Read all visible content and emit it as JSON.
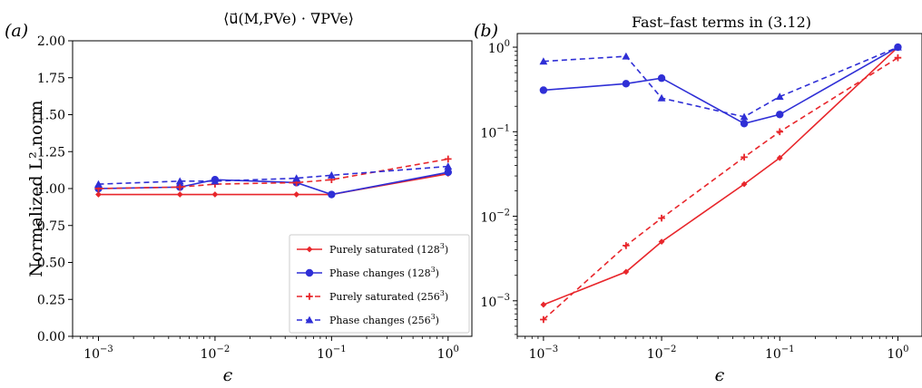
{
  "chart_data": [
    {
      "type": "line",
      "panel_label": "(a)",
      "title": "⟨u⃗(M,PVe) · ∇PVe⟩",
      "xlabel": "ϵ",
      "ylabel": "Normalized L² norm",
      "xscale": "log",
      "yscale": "linear",
      "xlim": [
        0.0006,
        1.6
      ],
      "ylim": [
        0,
        2
      ],
      "xticks": [
        {
          "v": 0.001,
          "b": "10",
          "e": "−3"
        },
        {
          "v": 0.01,
          "b": "10",
          "e": "−2"
        },
        {
          "v": 0.1,
          "b": "10",
          "e": "−1"
        },
        {
          "v": 1,
          "b": "10",
          "e": "0"
        }
      ],
      "yticks": [
        {
          "v": 0,
          "t": "0.00"
        },
        {
          "v": 0.25,
          "t": "0.25"
        },
        {
          "v": 0.5,
          "t": "0.50"
        },
        {
          "v": 0.75,
          "t": "0.75"
        },
        {
          "v": 1.0,
          "t": "1.00"
        },
        {
          "v": 1.25,
          "t": "1.25"
        },
        {
          "v": 1.5,
          "t": "1.50"
        },
        {
          "v": 1.75,
          "t": "1.75"
        },
        {
          "v": 2.0,
          "t": "2.00"
        }
      ],
      "legend_position": "lower-right",
      "series": [
        {
          "name": "Purely saturated (128",
          "sup": "3",
          "close": ")",
          "color": "#e8262b",
          "dash": "solid",
          "marker": "diamond",
          "x": [
            0.001,
            0.005,
            0.01,
            0.05,
            0.1,
            1
          ],
          "y": [
            0.96,
            0.96,
            0.96,
            0.96,
            0.96,
            1.1
          ]
        },
        {
          "name": "Phase changes (128",
          "sup": "3",
          "close": ")",
          "color": "#2f2fd6",
          "dash": "solid",
          "marker": "circle",
          "x": [
            0.001,
            0.005,
            0.01,
            0.05,
            0.1,
            1
          ],
          "y": [
            1.0,
            1.01,
            1.06,
            1.04,
            0.96,
            1.11
          ]
        },
        {
          "name": "Purely saturated (256",
          "sup": "3",
          "close": ")",
          "color": "#e8262b",
          "dash": "dashed",
          "marker": "plus",
          "x": [
            0.001,
            0.005,
            0.01,
            0.05,
            0.1,
            1
          ],
          "y": [
            1.0,
            1.01,
            1.03,
            1.04,
            1.06,
            1.2
          ]
        },
        {
          "name": "Phase changes (256",
          "sup": "3",
          "close": ")",
          "color": "#2f2fd6",
          "dash": "dashed",
          "marker": "triangle",
          "x": [
            0.001,
            0.005,
            0.01,
            0.05,
            0.1,
            1
          ],
          "y": [
            1.03,
            1.05,
            1.05,
            1.07,
            1.09,
            1.15
          ]
        }
      ]
    },
    {
      "type": "line",
      "panel_label": "(b)",
      "title": "Fast–fast terms in (3.12)",
      "xlabel": "ϵ",
      "ylabel": "",
      "xscale": "log",
      "yscale": "log",
      "xlim": [
        0.0006,
        1.6
      ],
      "ylim": [
        0.00038,
        1.45
      ],
      "xticks": [
        {
          "v": 0.001,
          "b": "10",
          "e": "−3"
        },
        {
          "v": 0.01,
          "b": "10",
          "e": "−2"
        },
        {
          "v": 0.1,
          "b": "10",
          "e": "−1"
        },
        {
          "v": 1,
          "b": "10",
          "e": "0"
        }
      ],
      "yticks": [
        {
          "v": 0.001,
          "b": "10",
          "e": "−3"
        },
        {
          "v": 0.01,
          "b": "10",
          "e": "−2"
        },
        {
          "v": 0.1,
          "b": "10",
          "e": "−1"
        },
        {
          "v": 1,
          "b": "10",
          "e": "0"
        }
      ],
      "series": [
        {
          "color": "#e8262b",
          "dash": "solid",
          "marker": "diamond",
          "x": [
            0.001,
            0.005,
            0.01,
            0.05,
            0.1,
            1
          ],
          "y": [
            0.0009,
            0.0022,
            0.005,
            0.024,
            0.049,
            1.0
          ]
        },
        {
          "color": "#2f2fd6",
          "dash": "solid",
          "marker": "circle",
          "x": [
            0.001,
            0.005,
            0.01,
            0.05,
            0.1,
            1
          ],
          "y": [
            0.31,
            0.37,
            0.43,
            0.125,
            0.16,
            1.0
          ]
        },
        {
          "color": "#e8262b",
          "dash": "dashed",
          "marker": "plus",
          "x": [
            0.001,
            0.005,
            0.01,
            0.05,
            0.1,
            1
          ],
          "y": [
            0.0006,
            0.0045,
            0.0095,
            0.05,
            0.1,
            0.75
          ]
        },
        {
          "color": "#2f2fd6",
          "dash": "dashed",
          "marker": "triangle",
          "x": [
            0.001,
            0.005,
            0.01,
            0.05,
            0.1,
            1
          ],
          "y": [
            0.68,
            0.78,
            0.25,
            0.15,
            0.26,
            1.0
          ]
        }
      ]
    }
  ]
}
